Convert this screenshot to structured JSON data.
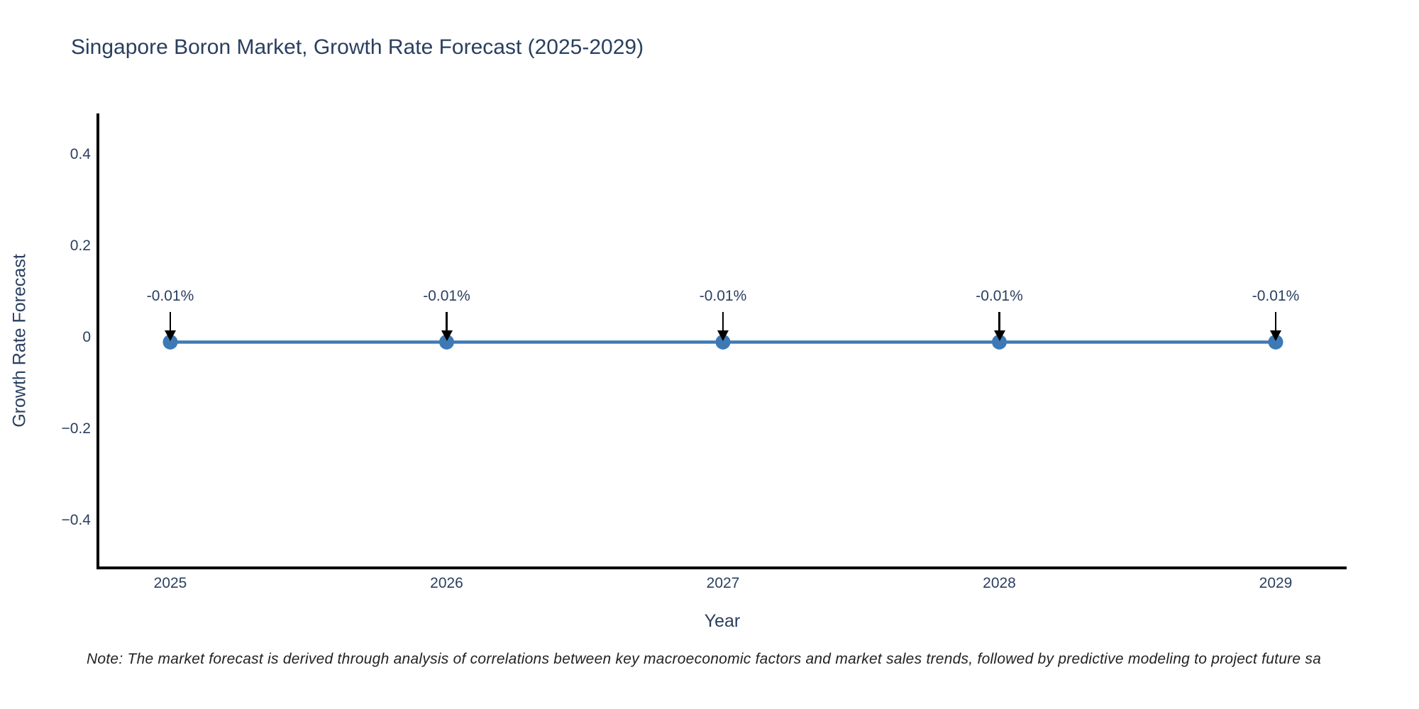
{
  "chart": {
    "title": "Singapore Boron Market, Growth Rate Forecast (2025-2029)",
    "note": "Note: The market forecast is derived through analysis of correlations between key macroeconomic factors and market sales trends, followed by predictive modeling to project future sa",
    "x_axis": {
      "label": "Year"
    },
    "y_axis": {
      "label": "Growth Rate Forecast"
    },
    "colors": {
      "title_text": "#2a3f5f",
      "axis_text": "#2a3f5f",
      "axis_line": "#000000",
      "series": "#3d7ab5",
      "annotation_arrow": "#000000",
      "note_text": "#222222",
      "background": "#ffffff"
    }
  },
  "chart_data": {
    "type": "line",
    "title": "Singapore Boron Market, Growth Rate Forecast (2025-2029)",
    "xlabel": "Year",
    "ylabel": "Growth Rate Forecast",
    "x": [
      2025,
      2026,
      2027,
      2028,
      2029
    ],
    "series": [
      {
        "name": "Growth Rate Forecast",
        "values": [
          -0.01,
          -0.01,
          -0.01,
          -0.01,
          -0.01
        ]
      }
    ],
    "point_labels": [
      "-0.01%",
      "-0.01%",
      "-0.01%",
      "-0.01%",
      "-0.01%"
    ],
    "xticks": [
      "2025",
      "2026",
      "2027",
      "2028",
      "2029"
    ],
    "yticks": [
      {
        "label": "0.4",
        "value": 0.4
      },
      {
        "label": "0.2",
        "value": 0.2
      },
      {
        "label": "0",
        "value": 0
      },
      {
        "label": "−0.2",
        "value": -0.2
      },
      {
        "label": "−0.4",
        "value": -0.4
      }
    ],
    "ylim": [
      -0.5,
      0.49
    ],
    "grid": false,
    "legend_visible": false,
    "marker_style": "circle",
    "annotation_style": "down-arrow"
  }
}
